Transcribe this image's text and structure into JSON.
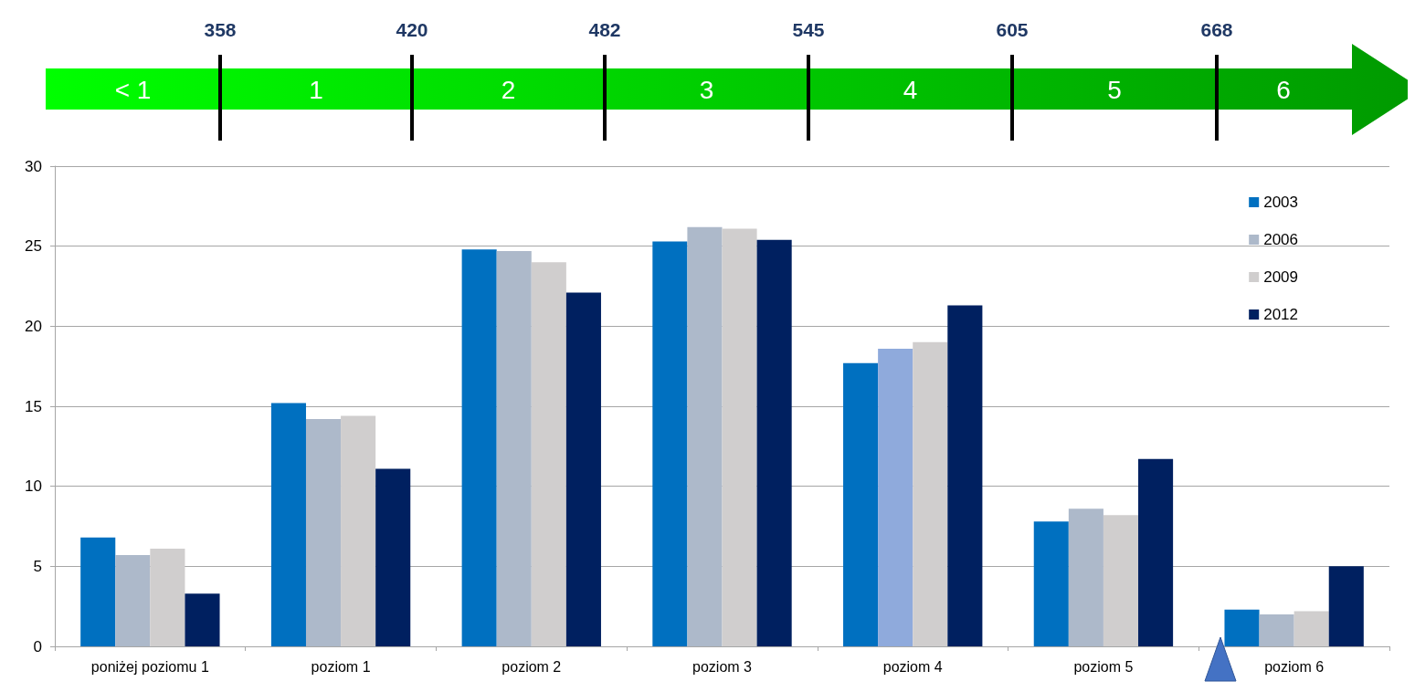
{
  "chart_data": {
    "type": "bar",
    "categories": [
      "poniżej poziomu 1",
      "poziom 1",
      "poziom 2",
      "poziom 3",
      "poziom 4",
      "poziom 5",
      "poziom 6"
    ],
    "series": [
      {
        "name": "2003",
        "color": "#0070c0",
        "values": [
          6.8,
          15.2,
          24.8,
          25.3,
          17.7,
          7.8,
          2.3
        ]
      },
      {
        "name": "2006",
        "color": "#adb9ca",
        "colors": [
          "#adb9ca",
          "#adb9ca",
          "#adb9ca",
          "#adb9ca",
          "#8faadc",
          "#adb9ca",
          "#adb9ca"
        ],
        "values": [
          5.7,
          14.2,
          24.7,
          26.2,
          18.6,
          8.6,
          2.0
        ]
      },
      {
        "name": "2009",
        "color": "#d0cece",
        "values": [
          6.1,
          14.4,
          24.0,
          26.1,
          19.0,
          8.2,
          2.2
        ]
      },
      {
        "name": "2012",
        "color": "#002060",
        "values": [
          3.3,
          11.1,
          22.1,
          25.4,
          21.3,
          11.7,
          5.0
        ]
      }
    ],
    "ylim": [
      0,
      30
    ],
    "yticks": [
      0,
      5,
      10,
      15,
      20,
      25,
      30
    ],
    "grid": "y",
    "legend": "top right",
    "annotations": [
      "< 1",
      "1",
      "2",
      "3",
      "4",
      "5",
      "6",
      "358",
      "420",
      "482",
      "545",
      "605",
      "668"
    ]
  }
}
